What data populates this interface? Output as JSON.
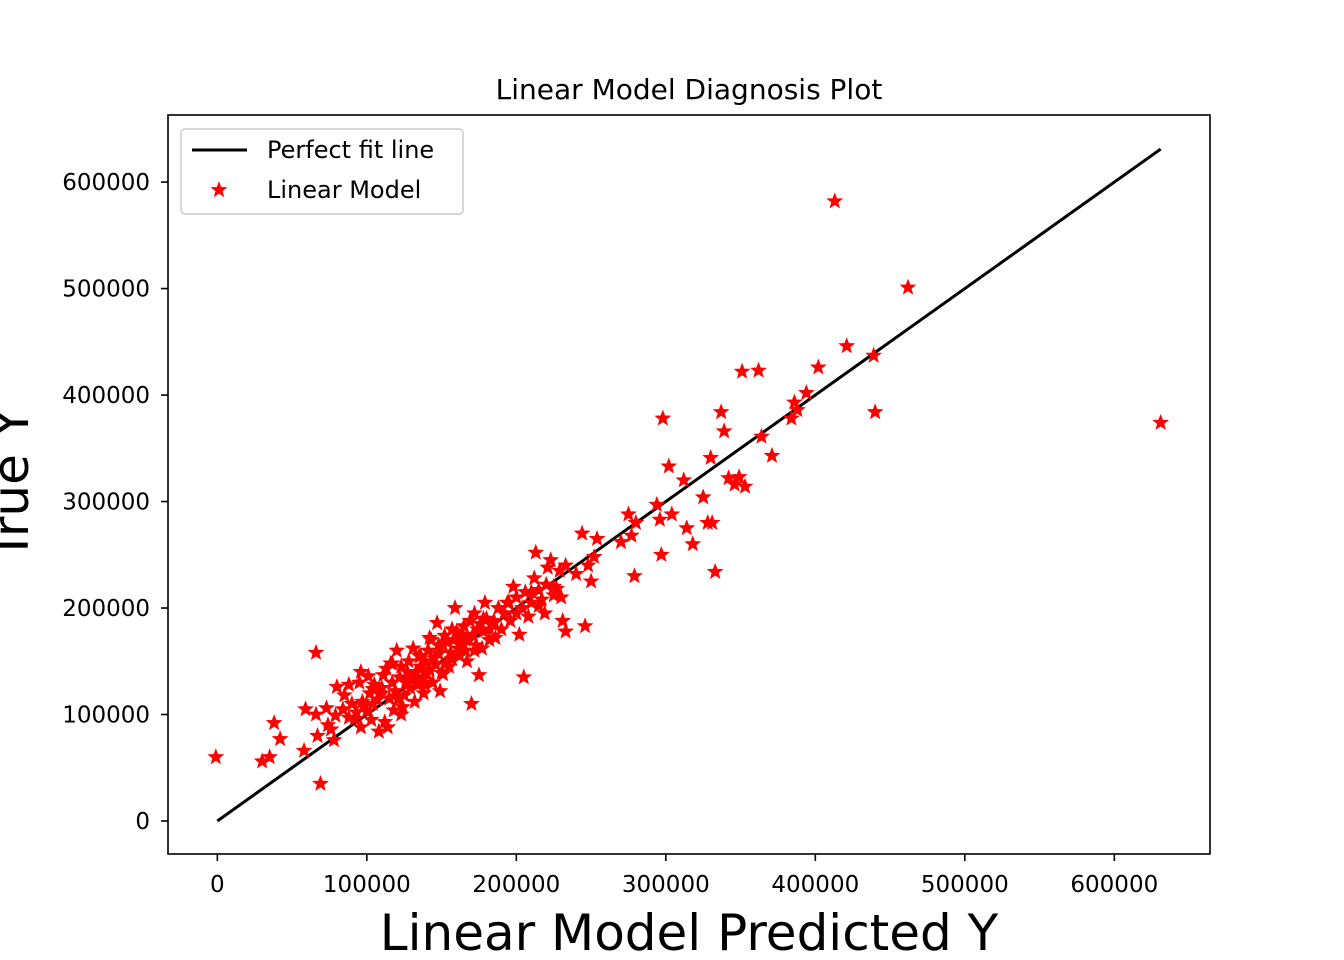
{
  "chart_data": {
    "type": "scatter",
    "title": "Linear Model Diagnosis Plot",
    "xlabel": "Linear Model Predicted Y",
    "ylabel": "True Y",
    "xlim": [
      -33000,
      664000
    ],
    "ylim": [
      -31000,
      663000
    ],
    "xticks": [
      "0",
      "100000",
      "200000",
      "300000",
      "400000",
      "500000",
      "600000"
    ],
    "xtick_values": [
      0,
      100000,
      200000,
      300000,
      400000,
      500000,
      600000
    ],
    "yticks": [
      "0",
      "100000",
      "200000",
      "300000",
      "400000",
      "500000",
      "600000"
    ],
    "ytick_values": [
      0,
      100000,
      200000,
      300000,
      400000,
      500000,
      600000
    ],
    "grid": false,
    "legend_position": "upper-left",
    "series": [
      {
        "name": "Perfect fit line",
        "kind": "line",
        "color": "#000000",
        "x": [
          0,
          631000
        ],
        "y": [
          0,
          631000
        ]
      },
      {
        "name": "Linear Model",
        "kind": "scatter",
        "marker": "star",
        "color": "#ff0000",
        "x": [
          -1000,
          30000,
          35000,
          38000,
          42000,
          58000,
          59000,
          66000,
          67000,
          69000,
          73000,
          74000,
          76000,
          78000,
          79000,
          80000,
          84000,
          85000,
          88000,
          90000,
          92000,
          93000,
          95000,
          96000,
          97000,
          98000,
          100000,
          101000,
          102000,
          103000,
          104000,
          105000,
          107000,
          108000,
          110000,
          111000,
          112000,
          113000,
          114000,
          115000,
          116000,
          117000,
          118000,
          119000,
          120000,
          121000,
          122000,
          123000,
          124000,
          125000,
          126000,
          127000,
          128000,
          129000,
          130000,
          131000,
          132000,
          133000,
          134000,
          135000,
          136000,
          137000,
          138000,
          139000,
          140000,
          141000,
          142000,
          143000,
          144000,
          145000,
          146000,
          147000,
          148000,
          149000,
          150000,
          151000,
          152000,
          153000,
          154000,
          155000,
          156000,
          157000,
          158000,
          159000,
          160000,
          161000,
          162000,
          163000,
          164000,
          165000,
          166000,
          167000,
          168000,
          169000,
          170000,
          171000,
          172000,
          173000,
          174000,
          175000,
          176000,
          177000,
          178000,
          179000,
          180000,
          182000,
          184000,
          186000,
          188000,
          190000,
          192000,
          194000,
          196000,
          198000,
          200000,
          202000,
          204000,
          206000,
          208000,
          210000,
          212000,
          213000,
          215000,
          217000,
          219000,
          221000,
          223000,
          225000,
          227000,
          229000,
          231000,
          233000,
          240000,
          244000,
          246000,
          248000,
          250000,
          252000,
          254000,
          270000,
          275000,
          277000,
          279000,
          280000,
          294000,
          296000,
          297000,
          298000,
          302000,
          304000,
          312000,
          314000,
          318000,
          325000,
          328000,
          330000,
          331000,
          333000,
          337000,
          339000,
          342000,
          346000,
          349000,
          351000,
          353000,
          362000,
          364000,
          371000,
          384000,
          386000,
          388000,
          394000,
          402000,
          413000,
          421000,
          439000,
          440000,
          462000,
          631000,
          66000,
          123000,
          127000,
          157000,
          166000,
          182000,
          200000,
          142000,
          110000,
          136000,
          148000,
          160000,
          185000,
          192000,
          205000,
          215000,
          225000,
          230000,
          117000,
          104000,
          88000,
          96000,
          139000,
          151000,
          172000,
          178000,
          195000,
          210000,
          220000,
          233000
        ],
        "y": [
          60000,
          56000,
          60000,
          92000,
          77000,
          66000,
          105000,
          158000,
          80000,
          35000,
          106000,
          90000,
          86000,
          76000,
          99000,
          126000,
          105000,
          118000,
          128000,
          110000,
          96000,
          102000,
          130000,
          140000,
          112000,
          108000,
          103000,
          136000,
          120000,
          95000,
          110000,
          128000,
          114000,
          84000,
          125000,
          137000,
          93000,
          143000,
          88000,
          115000,
          148000,
          130000,
          104000,
          122000,
          160000,
          114000,
          135000,
          145000,
          107000,
          118000,
          130000,
          140000,
          150000,
          125000,
          135000,
          162000,
          112000,
          140000,
          128000,
          155000,
          145000,
          133000,
          120000,
          150000,
          138000,
          160000,
          142000,
          170000,
          130000,
          153000,
          147000,
          186000,
          157000,
          122000,
          139000,
          165000,
          174000,
          148000,
          168000,
          145000,
          158000,
          180000,
          170000,
          200000,
          176000,
          162000,
          155000,
          168000,
          175000,
          183000,
          160000,
          150000,
          170000,
          188000,
          110000,
          175000,
          195000,
          165000,
          180000,
          137000,
          185000,
          162000,
          178000,
          205000,
          190000,
          170000,
          185000,
          172000,
          200000,
          180000,
          195000,
          205000,
          188000,
          220000,
          210000,
          175000,
          200000,
          215000,
          192000,
          205000,
          228000,
          252000,
          217000,
          208000,
          195000,
          238000,
          245000,
          212000,
          218000,
          235000,
          188000,
          178000,
          232000,
          270000,
          183000,
          240000,
          225000,
          248000,
          265000,
          262000,
          288000,
          268000,
          230000,
          280000,
          297000,
          283000,
          250000,
          378000,
          333000,
          288000,
          320000,
          275000,
          260000,
          304000,
          280000,
          341000,
          280000,
          234000,
          384000,
          366000,
          322000,
          316000,
          323000,
          422000,
          314000,
          423000,
          361000,
          343000,
          378000,
          393000,
          386000,
          402000,
          426000,
          582000,
          446000,
          437000,
          384000,
          501000,
          374000,
          100000,
          100000,
          133000,
          152000,
          170000,
          180000,
          195000,
          172000,
          120000,
          155000,
          165000,
          178000,
          188000,
          195000,
          135000,
          202000,
          220000,
          210000,
          148000,
          124000,
          97000,
          88000,
          128000,
          138000,
          160000,
          190000,
          205000,
          215000,
          222000,
          240000
        ]
      }
    ]
  }
}
